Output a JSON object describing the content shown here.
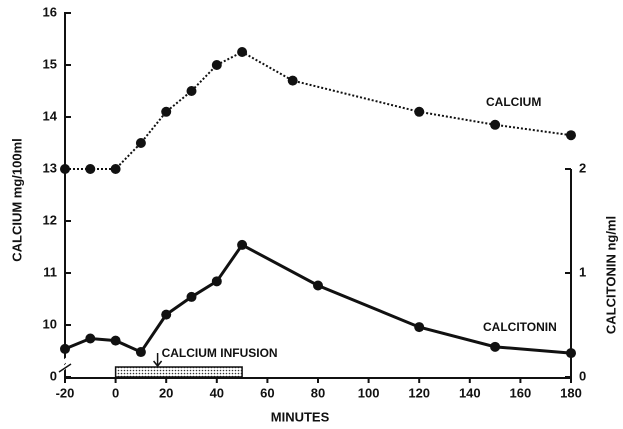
{
  "chart_data": {
    "type": "line",
    "x_label": "MINUTES",
    "y_label": "CALCIUM mg/100ml",
    "y2_label": "CALCITONIN ng/ml",
    "x": [
      -20,
      -10,
      0,
      10,
      20,
      30,
      40,
      50,
      70,
      80,
      120,
      150,
      180
    ],
    "series": [
      {
        "name": "CALCIUM",
        "color": "#111",
        "style": "dotted",
        "values": [
          13,
          13,
          13,
          13.5,
          14.1,
          14.5,
          15,
          15.25,
          14.7,
          null,
          14.1,
          13.85,
          13.65
        ]
      },
      {
        "name": "CALCITONIN",
        "color": "#111",
        "style": "solid",
        "axis": "y2",
        "values": [
          0.27,
          0.37,
          0.35,
          0.24,
          0.6,
          0.77,
          0.92,
          1.27,
          null,
          0.88,
          0.48,
          0.29,
          0.23
        ]
      }
    ],
    "xlim": [
      -20,
      180
    ],
    "xticks": [
      -20,
      0,
      20,
      40,
      60,
      80,
      100,
      120,
      140,
      160,
      180
    ],
    "ylim": [
      0,
      16
    ],
    "ybreak": [
      0,
      10
    ],
    "yticks": [
      0,
      10,
      11,
      12,
      13,
      14,
      15,
      16
    ],
    "y2lim": [
      0,
      3.5
    ],
    "y2ticks": [
      0,
      1,
      2
    ],
    "annotations": [
      {
        "text": "CALCIUM INFUSION",
        "x_start": 0,
        "x_end": 50
      }
    ]
  }
}
